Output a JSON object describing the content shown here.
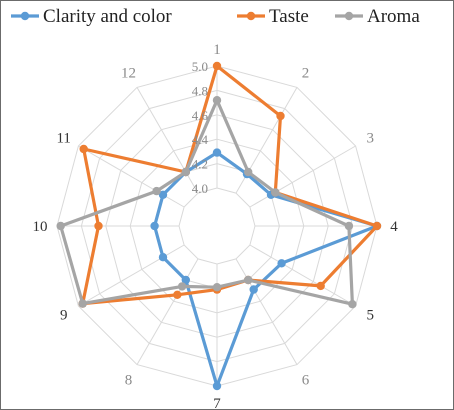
{
  "chart_data": {
    "type": "radar",
    "categories": [
      "1",
      "2",
      "3",
      "4",
      "5",
      "6",
      "7",
      "8",
      "9",
      "10",
      "11",
      "12"
    ],
    "axis": {
      "min": 4.0,
      "max": 5.0,
      "step": 0.2,
      "ticks": [
        "4.0",
        "4.2",
        "4.4",
        "4.6",
        "4.8",
        "5.0"
      ]
    },
    "grid": true,
    "legend_position": "top",
    "series": [
      {
        "name": "Clarity and color",
        "color": "#5b9bd5",
        "values": [
          4.29,
          4.18,
          4.2,
          5.0,
          4.3,
          4.29,
          5.0,
          4.2,
          4.2,
          4.2,
          4.2,
          4.2
        ]
      },
      {
        "name": "Taste",
        "color": "#ed7d31",
        "values": [
          5.0,
          4.73,
          4.24,
          5.0,
          4.67,
          4.2,
          4.21,
          4.34,
          4.96,
          4.66,
          4.95,
          4.2
        ]
      },
      {
        "name": "Aroma",
        "color": "#a5a5a5",
        "values": [
          4.72,
          4.2,
          4.24,
          4.77,
          4.97,
          4.2,
          4.19,
          4.26,
          4.96,
          4.97,
          4.26,
          4.2
        ]
      }
    ]
  }
}
